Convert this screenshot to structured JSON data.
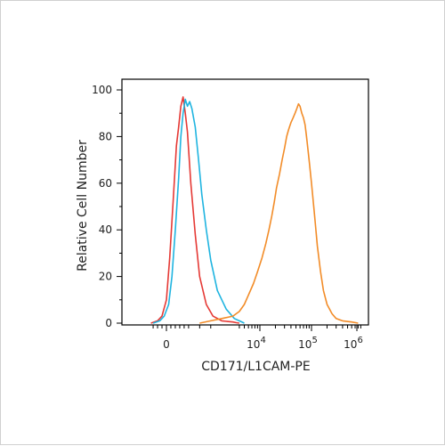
{
  "chart_data": {
    "type": "line",
    "title": "",
    "xlabel": "CD171/L1CAM-PE",
    "ylabel": "Relative Cell Number",
    "x_scale": "biexponential",
    "ylim": [
      0,
      100
    ],
    "y_ticks": [
      "0",
      "20",
      "40",
      "60",
      "80",
      "100"
    ],
    "x_ticks": [
      {
        "base": "0",
        "exp": ""
      },
      {
        "base": "10",
        "exp": "4"
      },
      {
        "base": "10",
        "exp": "5"
      },
      {
        "base": "10",
        "exp": "6"
      }
    ],
    "grid": false,
    "series": [
      {
        "color": "#e53935",
        "x": [
          -700,
          -400,
          -200,
          0,
          150,
          300,
          450,
          550,
          650,
          750,
          850,
          950,
          1100,
          1300,
          1500,
          1800,
          2100,
          2500,
          3000,
          3500,
          4000
        ],
        "y": [
          0,
          1,
          3,
          10,
          28,
          52,
          76,
          84,
          93,
          97,
          90,
          82,
          60,
          38,
          20,
          8,
          3,
          1,
          0.5,
          0.2,
          0
        ]
      },
      {
        "color": "#1fb4e0",
        "x": [
          -600,
          -300,
          -100,
          100,
          250,
          400,
          550,
          650,
          750,
          850,
          950,
          1050,
          1150,
          1300,
          1450,
          1600,
          1800,
          2000,
          2300,
          2700,
          3200,
          4000,
          5000
        ],
        "y": [
          0,
          1,
          3,
          8,
          20,
          40,
          62,
          80,
          90,
          96,
          93,
          95,
          92,
          84,
          70,
          55,
          40,
          27,
          14,
          6,
          2,
          1,
          0
        ]
      },
      {
        "color": "#f28c28",
        "x": [
          1500,
          2000,
          2500,
          3000,
          4000,
          5000,
          6000,
          7500,
          9000,
          11000,
          13000,
          15000,
          17000,
          19000,
          21000,
          24000,
          27000,
          30000,
          33000,
          36000,
          40000,
          44000,
          48000,
          52000,
          56000,
          60000,
          65000,
          70000,
          75000,
          80000,
          90000,
          100000,
          115000,
          130000,
          150000,
          170000,
          200000,
          250000,
          300000,
          400000,
          600000,
          800000
        ],
        "y": [
          0,
          1,
          2,
          3,
          5,
          8,
          12,
          17,
          22,
          28,
          34,
          40,
          46,
          52,
          58,
          64,
          70,
          75,
          80,
          83,
          86,
          88,
          90,
          92,
          94,
          93,
          90,
          88,
          85,
          80,
          70,
          60,
          46,
          33,
          22,
          14,
          8,
          4,
          2,
          1,
          0.5,
          0
        ]
      }
    ]
  }
}
